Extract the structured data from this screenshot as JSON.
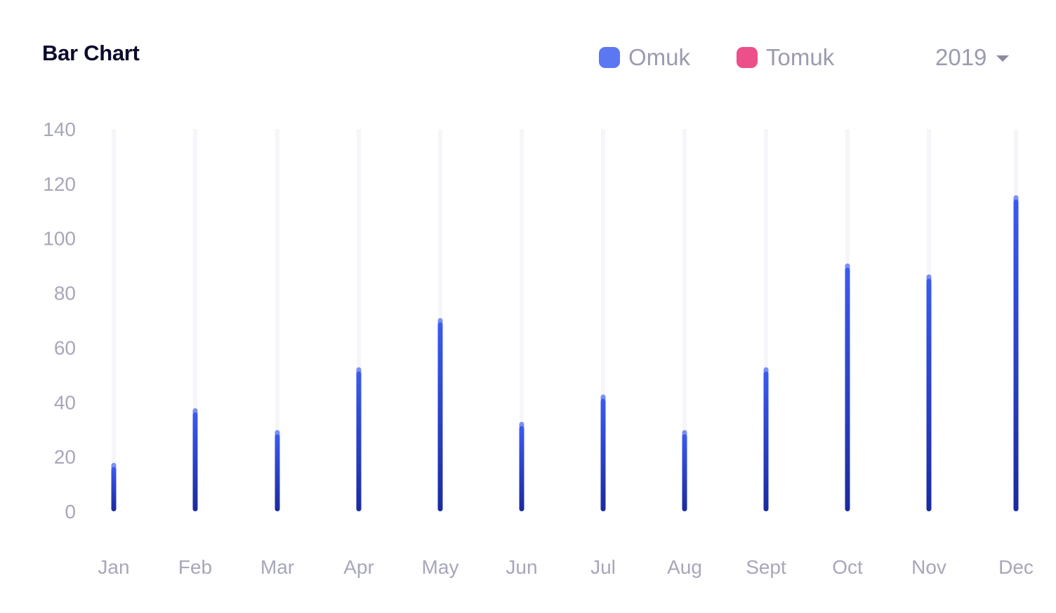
{
  "title": "Bar Chart",
  "legend": [
    {
      "label": "Omuk",
      "color": "#5b77f2"
    },
    {
      "label": "Tomuk",
      "color": "#ec4f89"
    }
  ],
  "year_select": {
    "value": "2019",
    "icon": "chevron-down-icon"
  },
  "colors": {
    "bar_top": "#3a5af0",
    "bar_bottom": "#1b2a9e",
    "bar_cap": "#7b8ff3",
    "grid": "#f6f6fa",
    "tick": "#a7a7ba"
  },
  "chart_data": {
    "type": "bar",
    "categories": [
      "Jan",
      "Feb",
      "Mar",
      "Apr",
      "May",
      "Jun",
      "Jul",
      "Aug",
      "Sept",
      "Oct",
      "Nov",
      "Dec"
    ],
    "series": [
      {
        "name": "Omuk",
        "values": [
          17,
          37,
          29,
          52,
          70,
          32,
          42,
          29,
          52,
          90,
          86,
          115
        ]
      }
    ],
    "yticks": [
      0,
      20,
      40,
      60,
      80,
      100,
      120,
      140
    ],
    "ylim": [
      0,
      140
    ],
    "grid": true,
    "legend_position": "top-right"
  }
}
